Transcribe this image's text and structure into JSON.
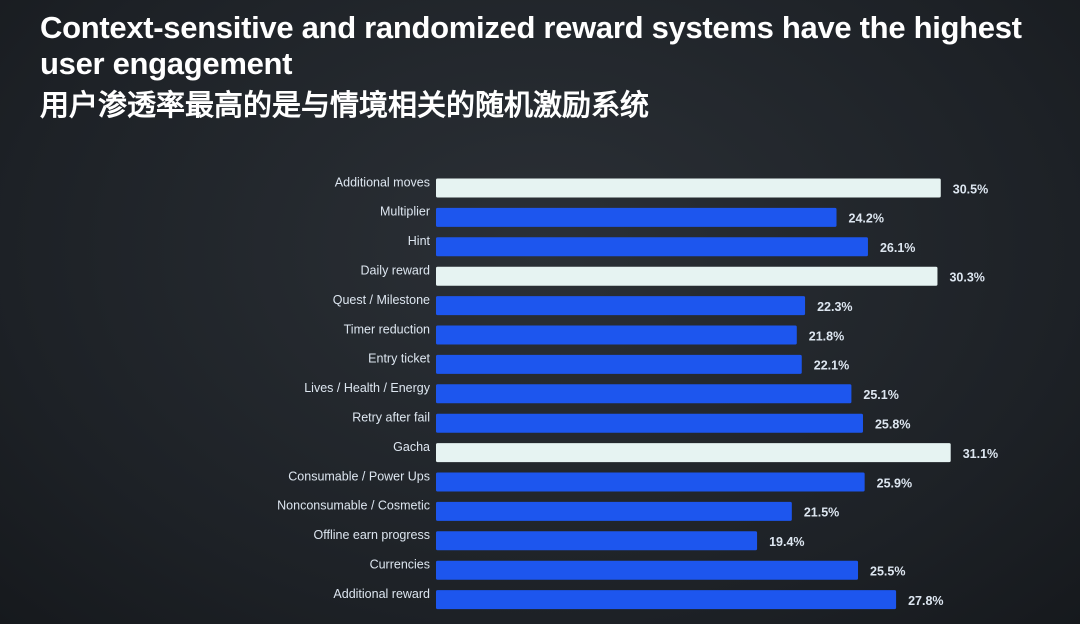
{
  "chart_data": {
    "type": "bar",
    "orientation": "horizontal",
    "title": "Context-sensitive and randomized reward systems have the highest user engagement",
    "subtitle": "用户渗透率最高的是与情境相关的随机激励系统",
    "categories": [
      "Additional moves",
      "Multiplier",
      "Hint",
      "Daily reward",
      "Quest / Milestone",
      "Timer reduction",
      "Entry ticket",
      "Lives / Health / Energy",
      "Retry after fail",
      "Gacha",
      "Consumable / Power Ups",
      "Nonconsumable / Cosmetic",
      "Offline earn progress",
      "Currencies",
      "Additional reward"
    ],
    "values": [
      30.5,
      24.2,
      26.1,
      30.3,
      22.3,
      21.8,
      22.1,
      25.1,
      25.8,
      31.1,
      25.9,
      21.5,
      19.4,
      25.5,
      27.8
    ],
    "value_labels": [
      "30.5%",
      "24.2%",
      "26.1%",
      "30.3%",
      "22.3%",
      "21.8%",
      "22.1%",
      "25.1%",
      "25.8%",
      "31.1%",
      "25.9%",
      "21.5%",
      "19.4%",
      "25.5%",
      "27.8%"
    ],
    "colors": [
      "#e6f3f2",
      "#1d56ee",
      "#1d56ee",
      "#e6f3f2",
      "#1d56ee",
      "#1d56ee",
      "#1d56ee",
      "#1d56ee",
      "#1d56ee",
      "#e6f3f2",
      "#1d56ee",
      "#1d56ee",
      "#1d56ee",
      "#1d56ee",
      "#1d56ee"
    ]
  }
}
